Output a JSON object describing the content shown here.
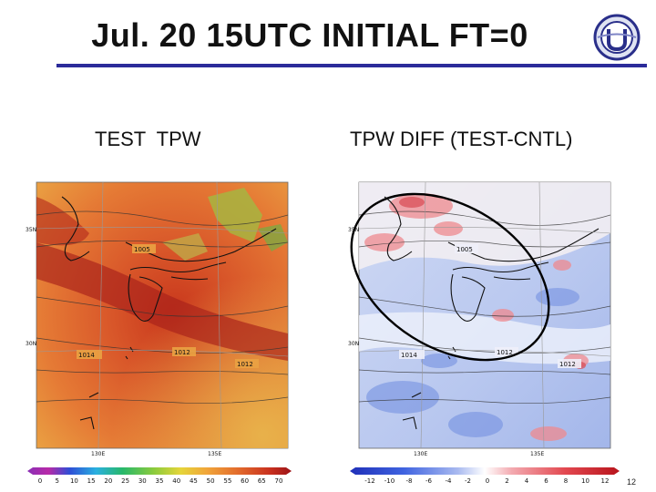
{
  "slide": {
    "title": "Jul. 20 15UTC   INITIAL  FT=0",
    "page_number": "12"
  },
  "panels": [
    {
      "label": "TEST  TPW",
      "colorbar_ticks": [
        "0",
        "5",
        "10",
        "15",
        "20",
        "25",
        "30",
        "35",
        "40",
        "45",
        "50",
        "55",
        "60",
        "65",
        "70"
      ],
      "map_labels": {
        "lat_top": "35N",
        "lat_bottom": "30N",
        "lon_left": "130E",
        "lon_right": "135E",
        "low": "1005",
        "pressure1": "1014",
        "pressure2": "1012",
        "pressure3": "1012"
      }
    },
    {
      "label": "TPW DIFF (TEST-CNTL)",
      "colorbar_ticks": [
        "-12",
        "-10",
        "-8",
        "-6",
        "-4",
        "-2",
        "0",
        "2",
        "4",
        "6",
        "8",
        "10",
        "12"
      ],
      "map_labels": {
        "lat_top": "35N",
        "lat_bottom": "30N",
        "lon_left": "130E",
        "lon_right": "135E",
        "low": "1005",
        "pressure1": "1014",
        "pressure2": "1012",
        "pressure3": "1012"
      }
    }
  ]
}
